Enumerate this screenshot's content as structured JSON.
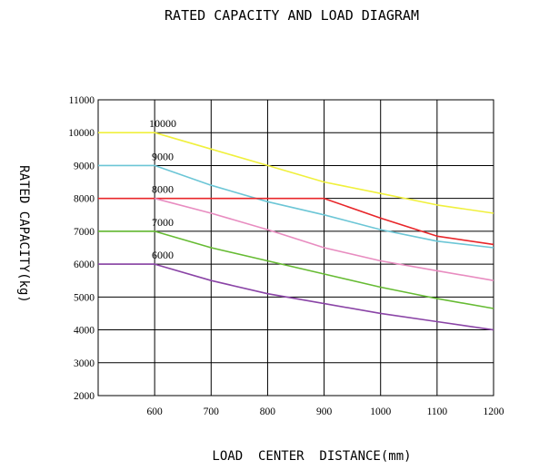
{
  "chart_data": {
    "type": "line",
    "title": "RATED CAPACITY AND LOAD DIAGRAM",
    "xlabel": "LOAD  CENTER  DISTANCE(mm)",
    "ylabel": "RATED CAPACITY(kg)",
    "xlim": [
      500,
      1200
    ],
    "ylim": [
      2000,
      11000
    ],
    "x_ticks": [
      "600",
      "700",
      "800",
      "900",
      "1000",
      "1100",
      "1200"
    ],
    "y_ticks": [
      "11000",
      "10000",
      "9000",
      "8000",
      "7000",
      "6000",
      "5000",
      "4000",
      "3000",
      "2000"
    ],
    "grid": true,
    "series": [
      {
        "name": "10000",
        "color": "#f0f03c",
        "x": [
          500,
          600,
          700,
          800,
          900,
          1000,
          1100,
          1200
        ],
        "y": [
          10000,
          10000,
          9500,
          9000,
          8500,
          8150,
          7800,
          7550
        ]
      },
      {
        "name": "9000",
        "color": "#6cc6d6",
        "x": [
          500,
          600,
          700,
          800,
          900,
          1000,
          1100,
          1200
        ],
        "y": [
          9000,
          9000,
          8400,
          7900,
          7500,
          7050,
          6700,
          6500
        ]
      },
      {
        "name": "8000",
        "color": "#e8262a",
        "x": [
          500,
          600,
          700,
          800,
          900,
          1000,
          1100,
          1200
        ],
        "y": [
          8000,
          8000,
          8000,
          8000,
          8000,
          7400,
          6850,
          6600
        ]
      },
      {
        "name": "",
        "color": "#e88cc0",
        "x": [
          600,
          700,
          800,
          900,
          1000,
          1100,
          1200
        ],
        "y": [
          8000,
          7550,
          7050,
          6500,
          6100,
          5800,
          5500
        ]
      },
      {
        "name": "7000",
        "color": "#66bb33",
        "x": [
          500,
          600,
          700,
          800,
          900,
          1000,
          1100,
          1200
        ],
        "y": [
          7000,
          7000,
          6500,
          6100,
          5700,
          5300,
          4950,
          4650
        ]
      },
      {
        "name": "6000",
        "color": "#8a44a6",
        "x": [
          500,
          600,
          700,
          800,
          900,
          1000,
          1100,
          1200
        ],
        "y": [
          6000,
          6000,
          5500,
          5100,
          4800,
          4500,
          4250,
          4000
        ]
      }
    ]
  }
}
